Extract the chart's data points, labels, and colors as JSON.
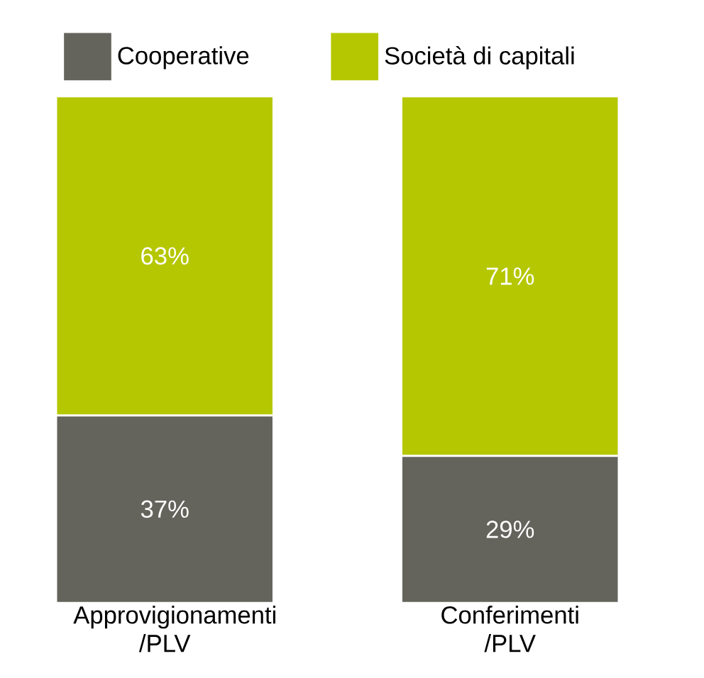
{
  "chart_data": {
    "type": "bar",
    "stacked": true,
    "categories": [
      "Approvigionamenti /PLV",
      "Conferimenti /PLV"
    ],
    "series": [
      {
        "name": "Cooperative",
        "color": "#64645c",
        "values": [
          37,
          29
        ],
        "value_labels": [
          "37%",
          "29%"
        ]
      },
      {
        "name": "Società di capitali",
        "color": "#b5c700",
        "values": [
          63,
          71
        ],
        "value_labels": [
          "63%",
          "71%"
        ]
      }
    ],
    "legend": "top"
  }
}
